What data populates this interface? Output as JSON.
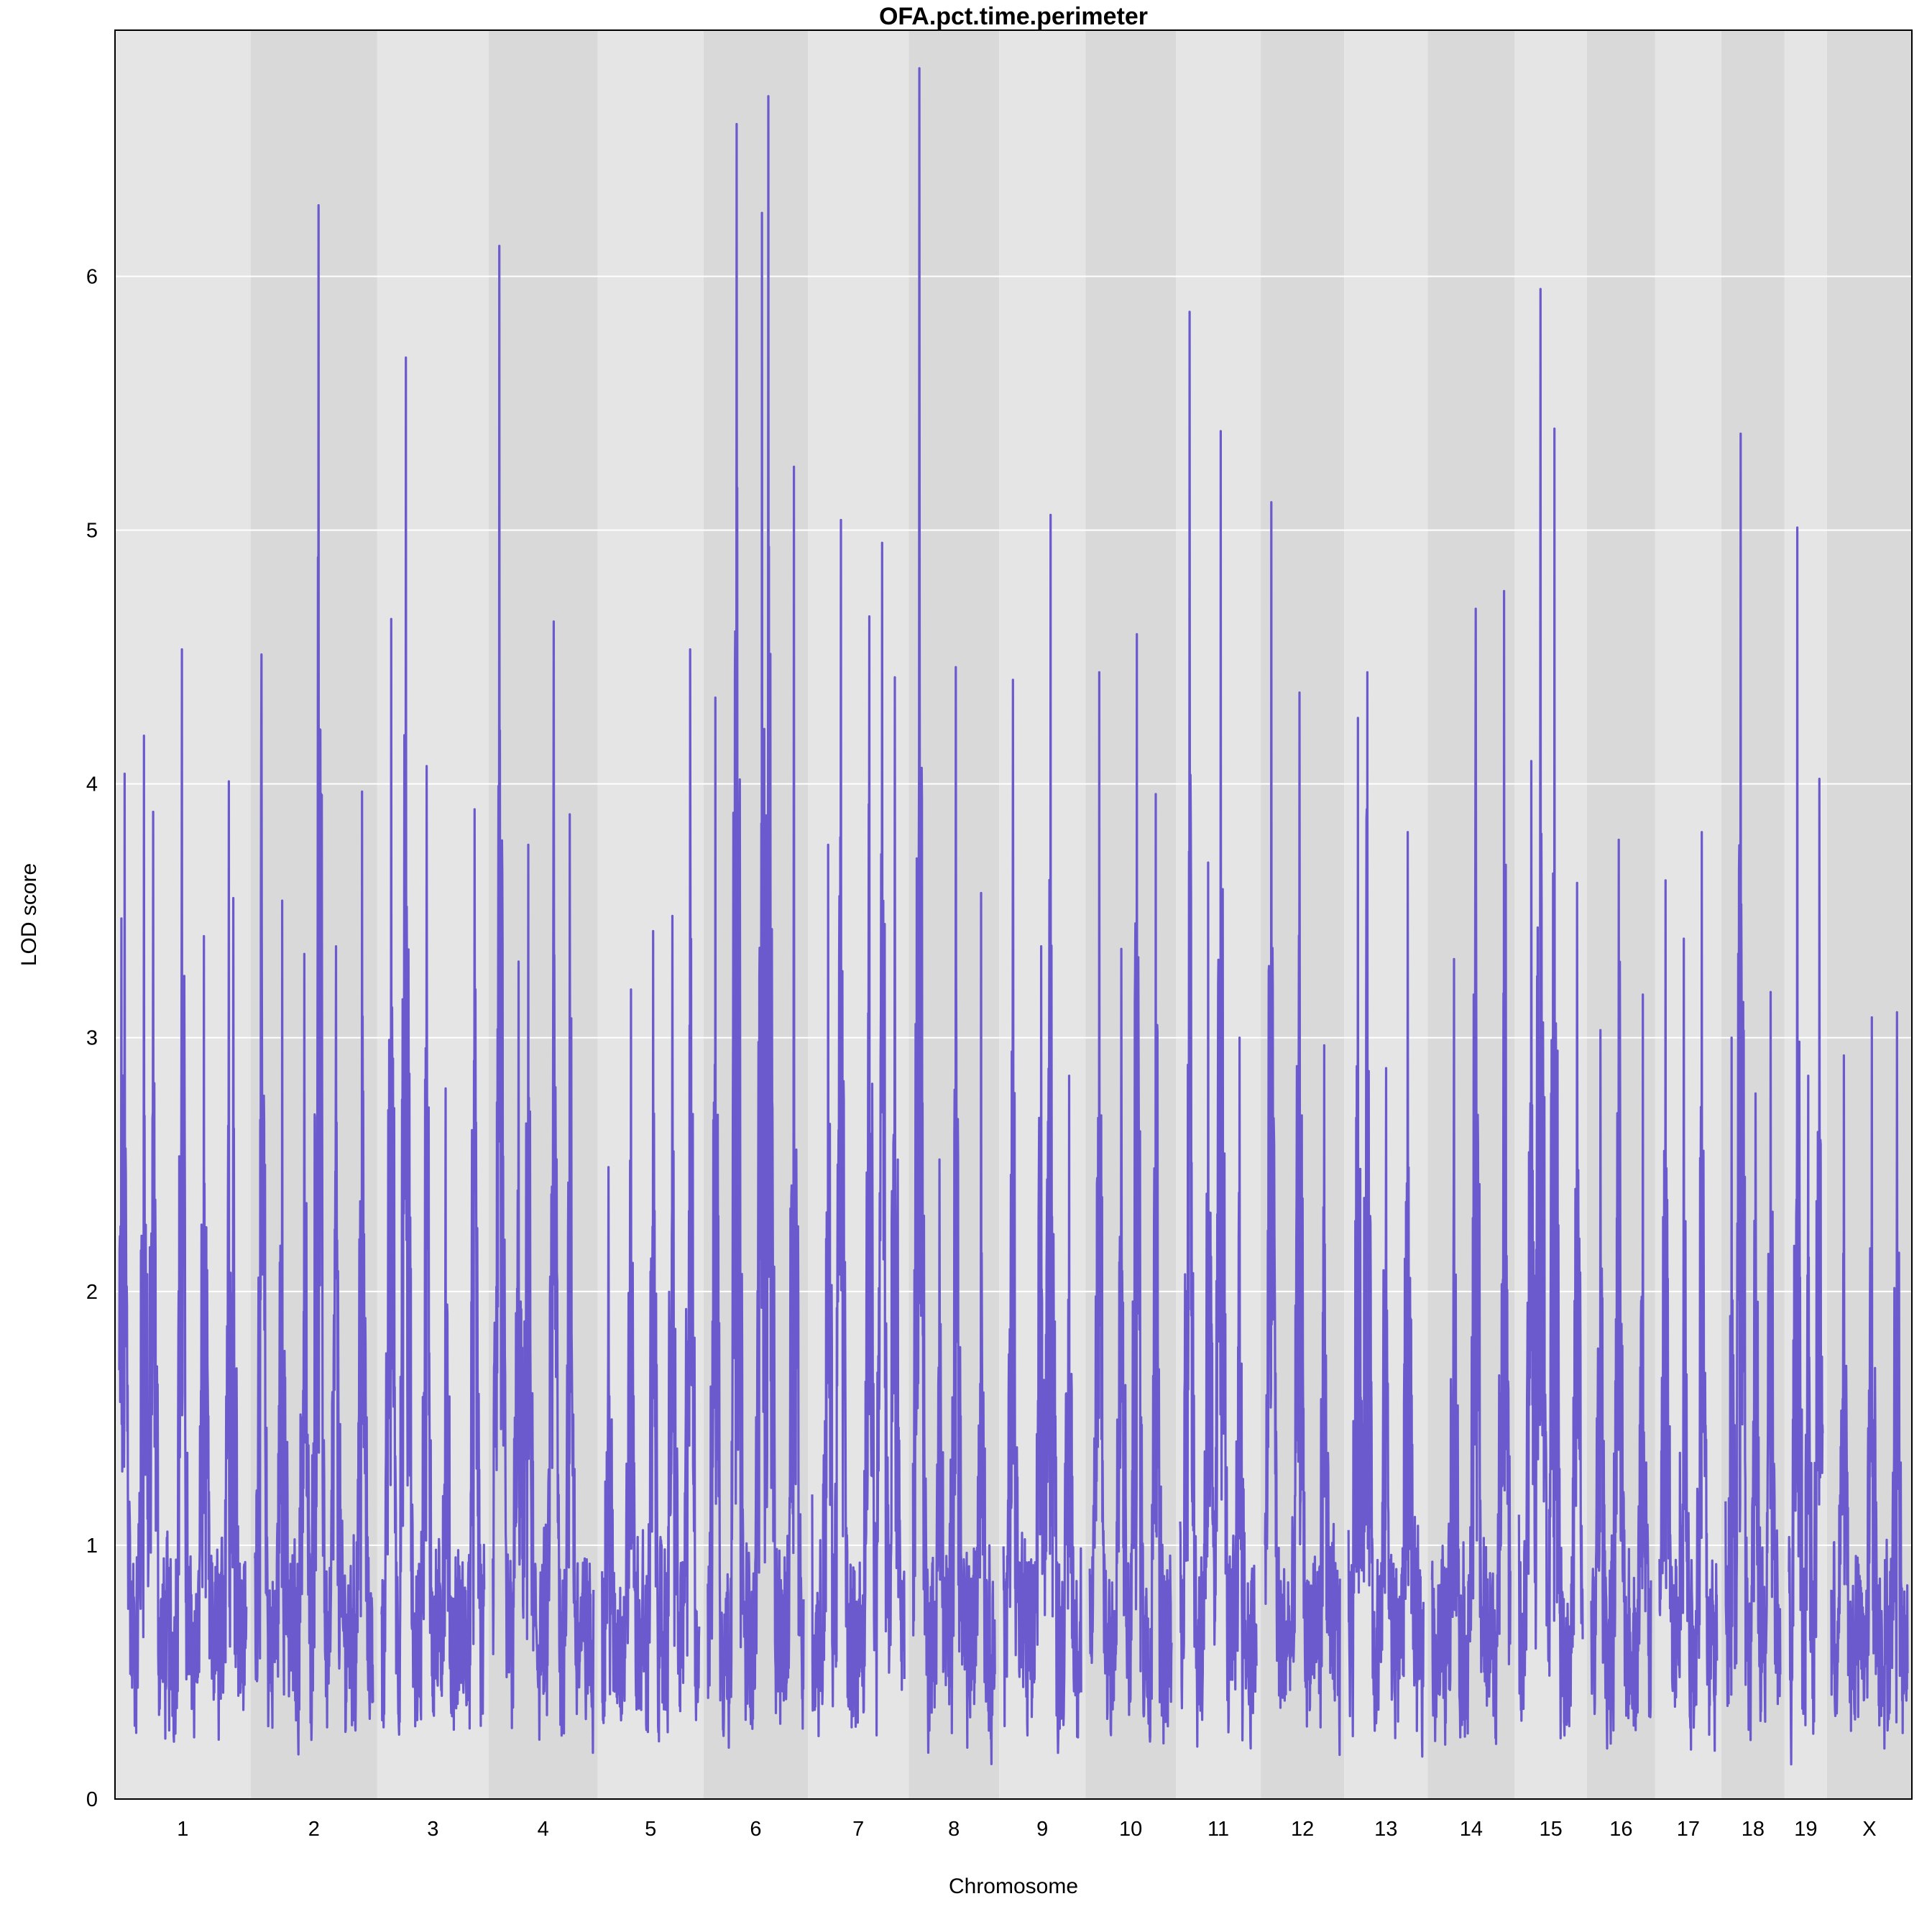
{
  "chart_data": {
    "type": "line",
    "title": "OFA.pct.time.perimeter",
    "xlabel": "Chromosome",
    "ylabel": "LOD score",
    "ylim": [
      0,
      6.97
    ],
    "yticks": [
      "0",
      "1",
      "2",
      "3",
      "4",
      "5",
      "6"
    ],
    "grid": true,
    "line_color": "#6a5acd",
    "band_colors": [
      "#e5e5e5",
      "#d9d9d9"
    ],
    "chromosomes": [
      {
        "label": "1",
        "length": 195,
        "peaks": [
          [
            3,
            3.47
          ],
          [
            8,
            4.04
          ],
          [
            38,
            4.19
          ],
          [
            52,
            3.89
          ],
          [
            96,
            4.53
          ],
          [
            130,
            3.4
          ],
          [
            168,
            4.01
          ],
          [
            175,
            3.55
          ]
        ]
      },
      {
        "label": "2",
        "length": 182,
        "peaks": [
          [
            10,
            4.51
          ],
          [
            42,
            3.54
          ],
          [
            76,
            3.33
          ],
          [
            98,
            6.28
          ],
          [
            125,
            3.36
          ],
          [
            165,
            3.97
          ]
        ]
      },
      {
        "label": "3",
        "length": 160,
        "peaks": [
          [
            15,
            4.65
          ],
          [
            38,
            5.68
          ],
          [
            70,
            4.07
          ],
          [
            100,
            2.8
          ],
          [
            145,
            3.9
          ]
        ]
      },
      {
        "label": "4",
        "length": 157,
        "peaks": [
          [
            10,
            6.12
          ],
          [
            40,
            3.3
          ],
          [
            55,
            3.76
          ],
          [
            95,
            4.64
          ],
          [
            120,
            3.88
          ]
        ]
      },
      {
        "label": "5",
        "length": 152,
        "peaks": [
          [
            10,
            2.49
          ],
          [
            45,
            3.19
          ],
          [
            80,
            3.42
          ],
          [
            110,
            3.48
          ],
          [
            138,
            4.53
          ]
        ]
      },
      {
        "label": "6",
        "length": 150,
        "peaks": [
          [
            12,
            4.34
          ],
          [
            45,
            6.6
          ],
          [
            85,
            6.25
          ],
          [
            95,
            6.71
          ],
          [
            135,
            5.25
          ]
        ]
      },
      {
        "label": "7",
        "length": 145,
        "peaks": [
          [
            25,
            3.76
          ],
          [
            45,
            5.04
          ],
          [
            90,
            4.66
          ],
          [
            110,
            4.95
          ],
          [
            130,
            4.42
          ]
        ]
      },
      {
        "label": "8",
        "length": 130,
        "peaks": [
          [
            10,
            6.82
          ],
          [
            42,
            2.52
          ],
          [
            68,
            4.46
          ],
          [
            108,
            3.57
          ]
        ]
      },
      {
        "label": "9",
        "length": 124,
        "peaks": [
          [
            15,
            4.41
          ],
          [
            60,
            3.36
          ],
          [
            75,
            5.06
          ],
          [
            105,
            2.85
          ]
        ]
      },
      {
        "label": "10",
        "length": 130,
        "peaks": [
          [
            15,
            4.44
          ],
          [
            50,
            3.35
          ],
          [
            75,
            4.59
          ],
          [
            105,
            3.96
          ]
        ]
      },
      {
        "label": "11",
        "length": 122,
        "peaks": [
          [
            15,
            5.86
          ],
          [
            45,
            3.69
          ],
          [
            65,
            5.39
          ],
          [
            95,
            3.0
          ]
        ]
      },
      {
        "label": "12",
        "length": 120,
        "peaks": [
          [
            10,
            5.11
          ],
          [
            55,
            4.36
          ],
          [
            95,
            2.97
          ]
        ]
      },
      {
        "label": "13",
        "length": 120,
        "peaks": [
          [
            15,
            4.26
          ],
          [
            30,
            4.44
          ],
          [
            60,
            2.88
          ],
          [
            95,
            3.81
          ]
        ]
      },
      {
        "label": "14",
        "length": 125,
        "peaks": [
          [
            35,
            3.31
          ],
          [
            70,
            4.69
          ],
          [
            115,
            4.76
          ]
        ]
      },
      {
        "label": "15",
        "length": 104,
        "peaks": [
          [
            20,
            4.09
          ],
          [
            35,
            5.95
          ],
          [
            58,
            5.4
          ],
          [
            95,
            3.61
          ]
        ]
      },
      {
        "label": "16",
        "length": 98,
        "peaks": [
          [
            15,
            3.03
          ],
          [
            45,
            3.78
          ],
          [
            85,
            3.17
          ]
        ]
      },
      {
        "label": "17",
        "length": 95,
        "peaks": [
          [
            10,
            3.62
          ],
          [
            40,
            3.39
          ],
          [
            70,
            3.81
          ]
        ]
      },
      {
        "label": "18",
        "length": 91,
        "peaks": [
          [
            10,
            3.0
          ],
          [
            25,
            5.38
          ],
          [
            50,
            2.78
          ],
          [
            75,
            3.18
          ]
        ]
      },
      {
        "label": "19",
        "length": 61,
        "peaks": [
          [
            15,
            5.01
          ],
          [
            35,
            2.85
          ],
          [
            55,
            4.02
          ]
        ]
      },
      {
        "label": "X",
        "length": 122,
        "peaks": [
          [
            20,
            2.93
          ],
          [
            65,
            3.08
          ],
          [
            105,
            3.1
          ]
        ]
      }
    ],
    "troughs_min": 0.04,
    "baseline_mean": 1.6
  }
}
